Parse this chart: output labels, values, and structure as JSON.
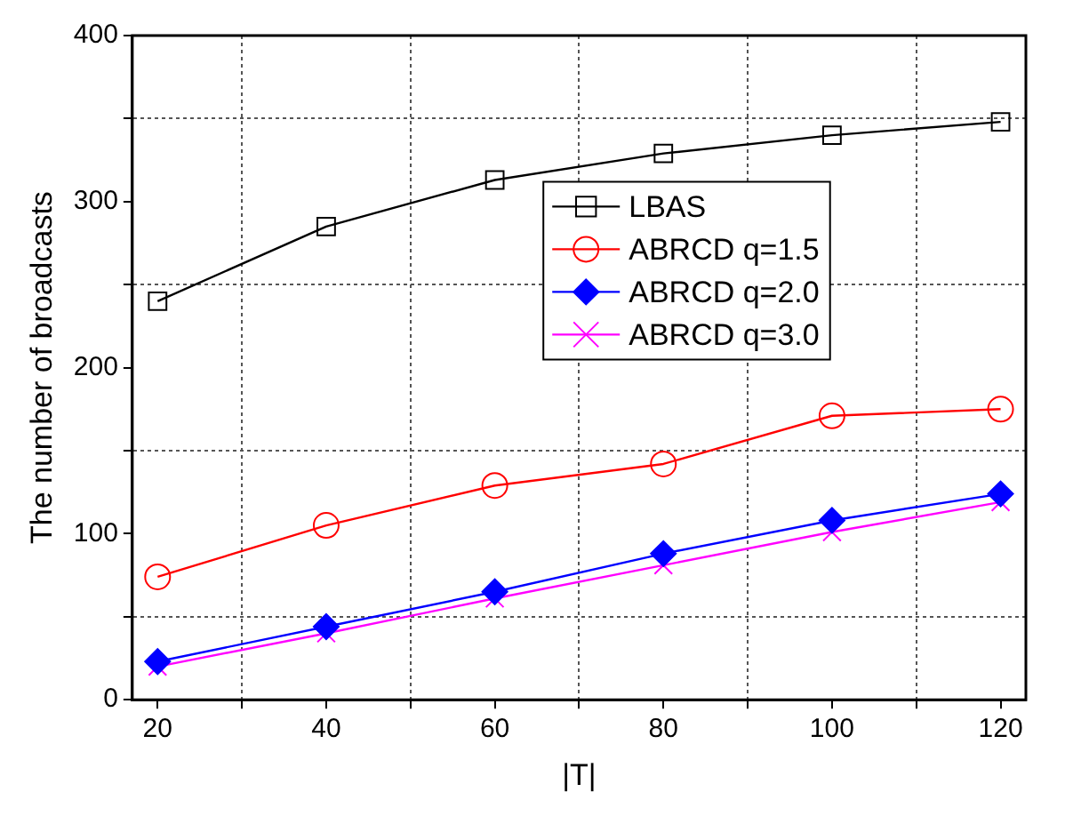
{
  "chart_data": {
    "type": "line",
    "xlabel": "|T|",
    "ylabel": "The number of broadcasts",
    "x": [
      20,
      40,
      60,
      80,
      100,
      120
    ],
    "series": [
      {
        "name": "LBAS",
        "color": "#000000",
        "marker": "square",
        "values": [
          240,
          285,
          313,
          329,
          340,
          348
        ]
      },
      {
        "name": "ABRCD q=1.5",
        "color": "#ff0000",
        "marker": "circle",
        "values": [
          74,
          105,
          129,
          142,
          171,
          175
        ]
      },
      {
        "name": "ABRCD q=2.0",
        "color": "#0000ff",
        "marker": "diamond",
        "values": [
          23,
          44,
          65,
          88,
          108,
          124
        ]
      },
      {
        "name": "ABRCD q=3.0",
        "color": "#ff00ff",
        "marker": "cross",
        "values": [
          20,
          40,
          61,
          81,
          101,
          119
        ]
      }
    ],
    "xlim": [
      17,
      123
    ],
    "ylim": [
      0,
      400
    ],
    "xticks": [
      20,
      {
        "value": 30,
        "label": null
      },
      40,
      {
        "value": 50,
        "label": null
      },
      60,
      {
        "value": 70,
        "label": null
      },
      80,
      {
        "value": 90,
        "label": null
      },
      100,
      {
        "value": 110,
        "label": null
      },
      120
    ],
    "yticks": [
      0,
      {
        "value": 50,
        "label": null
      },
      100,
      {
        "value": 150,
        "label": null
      },
      200,
      {
        "value": 250,
        "label": null
      },
      300,
      {
        "value": 350,
        "label": null
      },
      400
    ],
    "grid": true,
    "legend": "right",
    "line_style": "solid"
  }
}
